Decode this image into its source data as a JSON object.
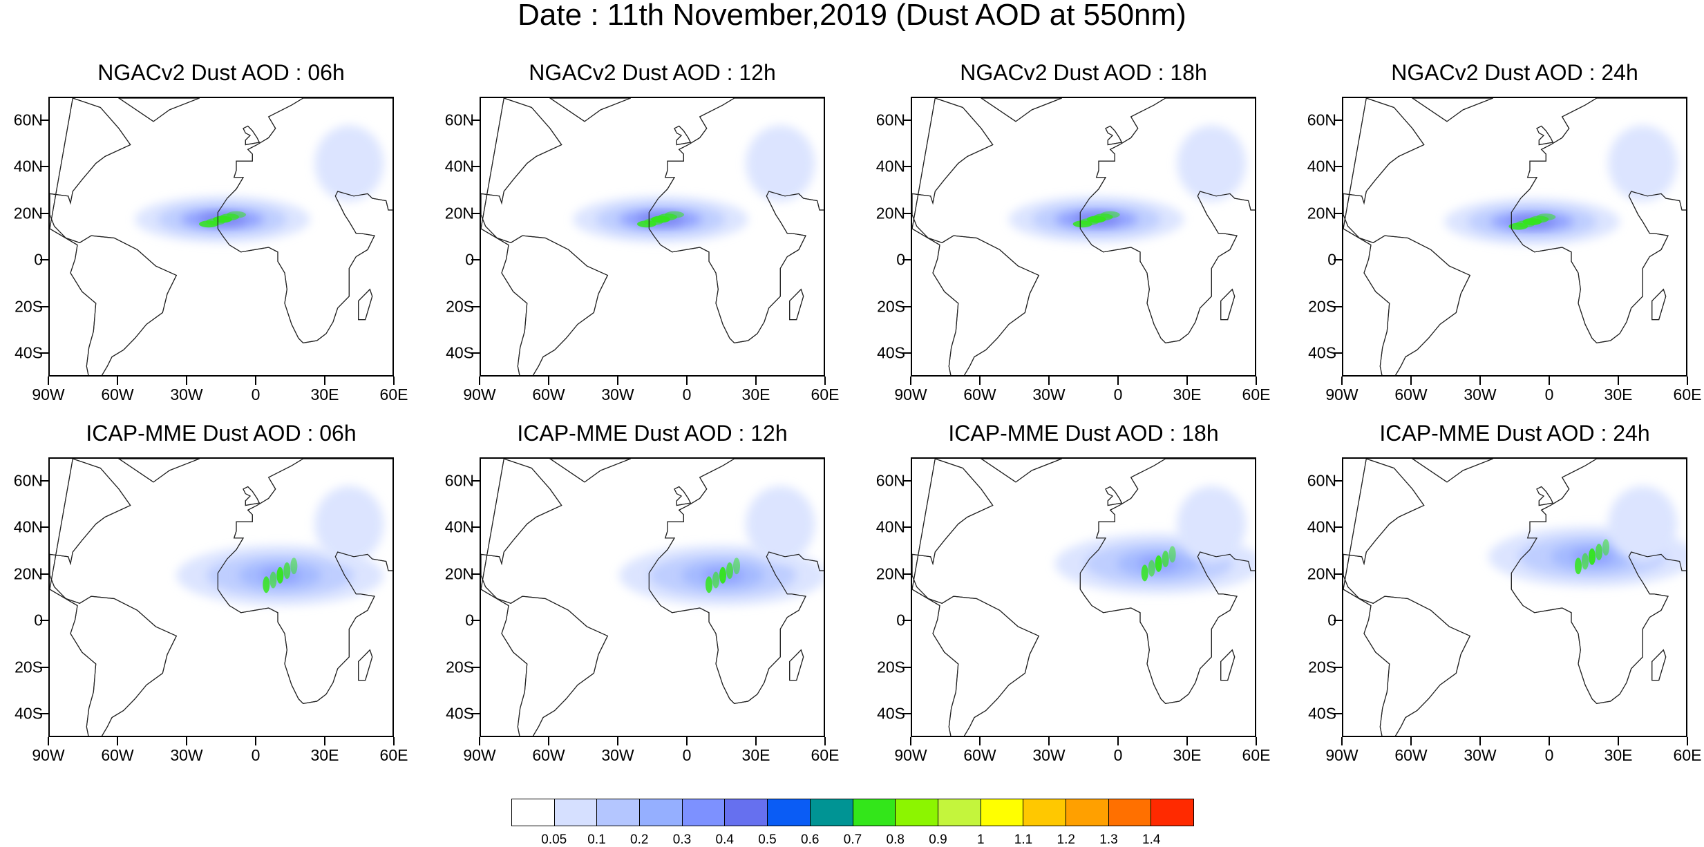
{
  "title": "Date : 11th November,2019 (Dust AOD at 550nm)",
  "lat_labels": [
    "60N",
    "40N",
    "20N",
    "0",
    "20S",
    "40S"
  ],
  "lon_labels": [
    "90W",
    "60W",
    "30W",
    "0",
    "30E",
    "60E"
  ],
  "panels": [
    {
      "title": "NGACv2 Dust AOD : 06h",
      "dust_center": {
        "lon": -15,
        "lat": 18
      }
    },
    {
      "title": "NGACv2 Dust AOD : 12h",
      "dust_center": {
        "lon": -12,
        "lat": 18
      }
    },
    {
      "title": "NGACv2 Dust AOD : 18h",
      "dust_center": {
        "lon": -10,
        "lat": 18
      }
    },
    {
      "title": "NGACv2 Dust AOD : 24h",
      "dust_center": {
        "lon": -8,
        "lat": 17
      }
    },
    {
      "title": "ICAP-MME Dust AOD : 06h",
      "dust_center": {
        "lon": 10,
        "lat": 20
      }
    },
    {
      "title": "ICAP-MME Dust AOD : 12h",
      "dust_center": {
        "lon": 15,
        "lat": 20
      }
    },
    {
      "title": "ICAP-MME Dust AOD : 18h",
      "dust_center": {
        "lon": 17,
        "lat": 25
      }
    },
    {
      "title": "ICAP-MME Dust AOD : 24h",
      "dust_center": {
        "lon": 18,
        "lat": 28
      }
    }
  ],
  "colorbar": {
    "labels": [
      "0.05",
      "0.1",
      "0.2",
      "0.3",
      "0.4",
      "0.5",
      "0.6",
      "0.7",
      "0.8",
      "0.9",
      "1",
      "1.1",
      "1.2",
      "1.3",
      "1.4"
    ],
    "colors": [
      "#ffffff",
      "#d6e0ff",
      "#b4c6ff",
      "#95afff",
      "#7d91ff",
      "#6670ef",
      "#0a5cf5",
      "#009494",
      "#33e61a",
      "#8cf500",
      "#c4f53c",
      "#ffff00",
      "#ffc800",
      "#ffa000",
      "#ff7000",
      "#ff2a00"
    ]
  }
}
